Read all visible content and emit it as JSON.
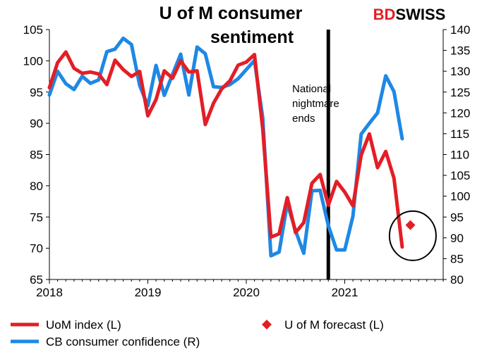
{
  "brand": {
    "text": "BDSWISS",
    "prefix": "BD",
    "suffix": "SWISS",
    "prefix_color": "#e31e26",
    "suffix_color": "#000000"
  },
  "chart_data": {
    "type": "line",
    "title": "U of M consumer sentiment",
    "title_lines": [
      "U of M consumer",
      "sentiment"
    ],
    "x_ticks": [
      "2018",
      "2019",
      "2020",
      "2021"
    ],
    "x_range": [
      "2018-01",
      "2021-12"
    ],
    "y_left": {
      "range": [
        65,
        105
      ],
      "ticks": [
        "65",
        "70",
        "75",
        "80",
        "85",
        "90",
        "95",
        "100",
        "105"
      ]
    },
    "y_right": {
      "range": [
        80,
        140
      ],
      "ticks": [
        "80",
        "85",
        "90",
        "95",
        "100",
        "105",
        "110",
        "115",
        "120",
        "125",
        "130",
        "135",
        "140"
      ]
    },
    "annotation": {
      "lines": [
        "National",
        "nightmare",
        "ends"
      ],
      "marker_date": "2020-11"
    },
    "series": [
      {
        "name": "UoM index (L)",
        "axis": "left",
        "color": "#e31e26",
        "x": [
          "2018-01",
          "2018-02",
          "2018-03",
          "2018-04",
          "2018-05",
          "2018-06",
          "2018-07",
          "2018-08",
          "2018-09",
          "2018-10",
          "2018-11",
          "2018-12",
          "2019-01",
          "2019-02",
          "2019-03",
          "2019-04",
          "2019-05",
          "2019-06",
          "2019-07",
          "2019-08",
          "2019-09",
          "2019-10",
          "2019-11",
          "2019-12",
          "2020-01",
          "2020-02",
          "2020-03",
          "2020-04",
          "2020-05",
          "2020-06",
          "2020-07",
          "2020-08",
          "2020-09",
          "2020-10",
          "2020-11",
          "2020-12",
          "2021-01",
          "2021-02",
          "2021-03",
          "2021-04",
          "2021-05",
          "2021-06",
          "2021-07",
          "2021-08"
        ],
        "values": [
          95.7,
          99.7,
          101.4,
          98.8,
          98.0,
          98.2,
          97.9,
          96.2,
          100.1,
          98.6,
          97.5,
          98.3,
          91.2,
          93.8,
          98.4,
          97.2,
          100.0,
          98.2,
          98.4,
          89.8,
          93.2,
          95.5,
          96.8,
          99.3,
          99.8,
          101.0,
          89.1,
          71.8,
          72.3,
          78.1,
          72.5,
          74.1,
          80.4,
          81.8,
          76.9,
          80.7,
          79.0,
          76.8,
          84.9,
          88.3,
          82.9,
          85.5,
          81.2,
          70.2
        ],
        "title": "U of M consumer sentiment"
      },
      {
        "name": "CB consumer confidence (R)",
        "axis": "right",
        "color": "#1e88e5",
        "x": [
          "2018-01",
          "2018-02",
          "2018-03",
          "2018-04",
          "2018-05",
          "2018-06",
          "2018-07",
          "2018-08",
          "2018-09",
          "2018-10",
          "2018-11",
          "2018-12",
          "2019-01",
          "2019-02",
          "2019-03",
          "2019-04",
          "2019-05",
          "2019-06",
          "2019-07",
          "2019-08",
          "2019-09",
          "2019-10",
          "2019-11",
          "2019-12",
          "2020-01",
          "2020-02",
          "2020-03",
          "2020-04",
          "2020-05",
          "2020-06",
          "2020-07",
          "2020-08",
          "2020-09",
          "2020-10",
          "2020-11",
          "2020-12",
          "2021-01",
          "2021-02",
          "2021-03",
          "2021-04",
          "2021-05",
          "2021-06",
          "2021-07",
          "2021-08"
        ],
        "values": [
          124.3,
          130.0,
          127.0,
          125.6,
          128.8,
          127.1,
          127.9,
          134.7,
          135.3,
          137.9,
          136.4,
          126.6,
          121.7,
          131.4,
          124.2,
          129.2,
          134.1,
          124.3,
          135.8,
          134.2,
          126.3,
          126.1,
          126.8,
          128.2,
          130.4,
          132.6,
          118.8,
          85.7,
          86.6,
          98.3,
          91.7,
          86.3,
          101.3,
          101.4,
          92.9,
          87.1,
          87.1,
          95.2,
          114.9,
          117.5,
          120.0,
          128.9,
          125.1,
          113.8
        ]
      },
      {
        "name": "U of M forecast (L)",
        "axis": "left",
        "color": "#e31e26",
        "type": "scatter",
        "x": [
          "2021-09"
        ],
        "values": [
          73.7
        ]
      }
    ],
    "legend": {
      "position": "bottom",
      "items": [
        "UoM index (L)",
        "U of M forecast (L)",
        "CB consumer confidence (R)"
      ]
    },
    "grid": false,
    "highlight_circle": {
      "x": "2021-08",
      "y": 72,
      "axis": "left"
    }
  }
}
